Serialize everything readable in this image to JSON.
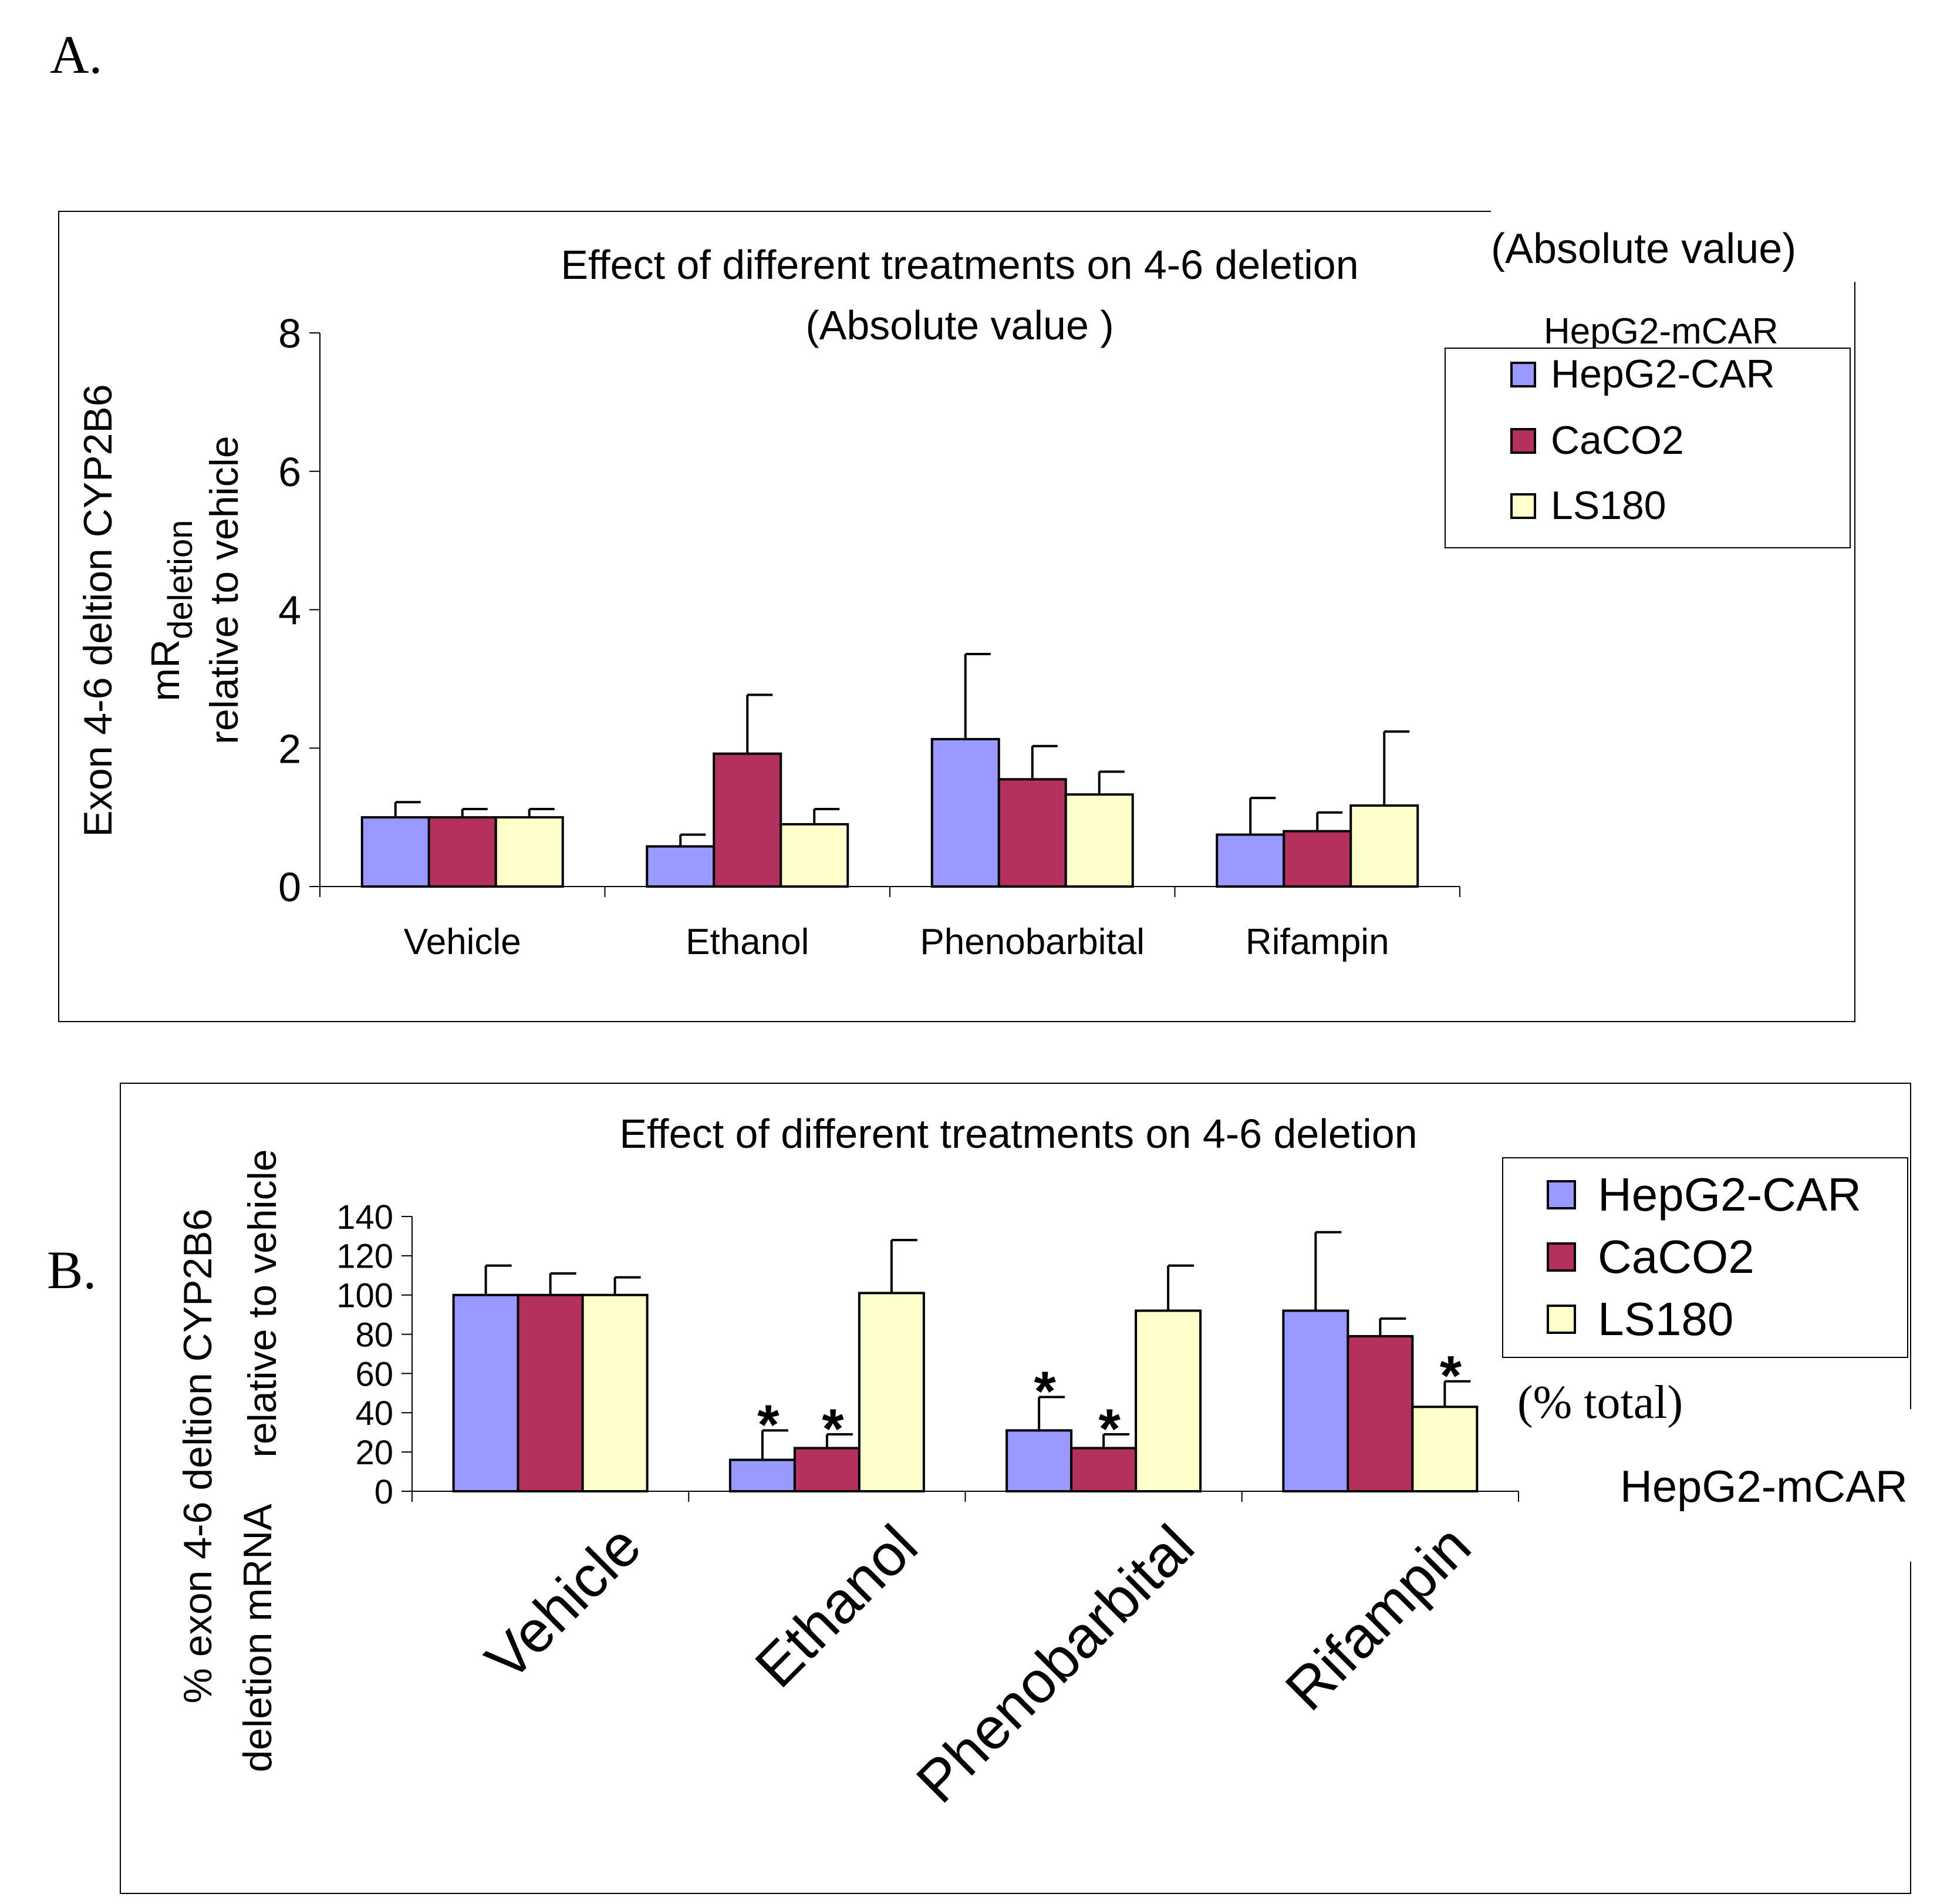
{
  "panels": {
    "a": {
      "letter": "A.",
      "side_note": "(Absolute value)",
      "side_cell": "HepG2-mCAR"
    },
    "b": {
      "letter": "B.",
      "side_note": "(% total)",
      "side_cell": "HepG2-mCAR"
    }
  },
  "colors": {
    "HepG2-CAR": "#9999ff",
    "CaCO2": "#b3305f",
    "LS180": "#ffffcc"
  },
  "chart_data": [
    {
      "type": "bar",
      "title": "Effect of different treatments on 4-6 deletion",
      "subtitle": "(Absolute value )",
      "ylabel_line1": "Exon 4-6 deltion CYP2B6",
      "ylabel_line2": "mR",
      "ylabel_line2_sub": "deletion",
      "ylabel_line3": "relative to vehicle",
      "xlabel": "",
      "categories": [
        "Vehicle",
        "Ethanol",
        "Phenobarbital",
        "Rifampin"
      ],
      "ylim": [
        0,
        8
      ],
      "yticks": [
        "0",
        "2",
        "4",
        "6",
        "8"
      ],
      "grid": false,
      "legend_position": "top-right",
      "series": [
        {
          "name": "HepG2-CAR",
          "values": [
            1.0,
            0.58,
            2.13,
            0.75
          ],
          "errors": [
            0.22,
            0.17,
            1.23,
            0.53
          ]
        },
        {
          "name": "CaCO2",
          "values": [
            1.0,
            1.92,
            1.55,
            0.8
          ],
          "errors": [
            0.12,
            0.85,
            0.48,
            0.27
          ]
        },
        {
          "name": "LS180",
          "values": [
            1.0,
            0.9,
            1.33,
            1.17
          ],
          "errors": [
            0.12,
            0.22,
            0.33,
            1.07
          ]
        }
      ]
    },
    {
      "type": "bar",
      "title": "Effect of different treatments on 4-6 deletion",
      "ylabel_line1": "% exon 4-6 deltion CYP2B6",
      "ylabel_line2": "deletion mRNA",
      "ylabel_line3": "relative to vehicle",
      "xlabel": "",
      "categories": [
        "Vehicle",
        "Ethanol",
        "Phenobarbital",
        "Rifampin"
      ],
      "ylim": [
        0,
        140
      ],
      "yticks": [
        "0",
        "20",
        "40",
        "60",
        "80",
        "100",
        "120",
        "140"
      ],
      "grid": false,
      "legend_position": "top-right",
      "significance_mark": "*",
      "series": [
        {
          "name": "HepG2-CAR",
          "values": [
            100,
            16,
            31,
            92
          ],
          "errors": [
            15,
            15,
            17,
            40
          ],
          "significant": [
            false,
            true,
            true,
            false
          ]
        },
        {
          "name": "CaCO2",
          "values": [
            100,
            22,
            22,
            79
          ],
          "errors": [
            11,
            7,
            7,
            9
          ],
          "significant": [
            false,
            true,
            true,
            false
          ]
        },
        {
          "name": "LS180",
          "values": [
            100,
            101,
            92,
            43
          ],
          "errors": [
            9,
            27,
            23,
            13
          ],
          "significant": [
            false,
            false,
            false,
            true
          ]
        }
      ]
    }
  ]
}
